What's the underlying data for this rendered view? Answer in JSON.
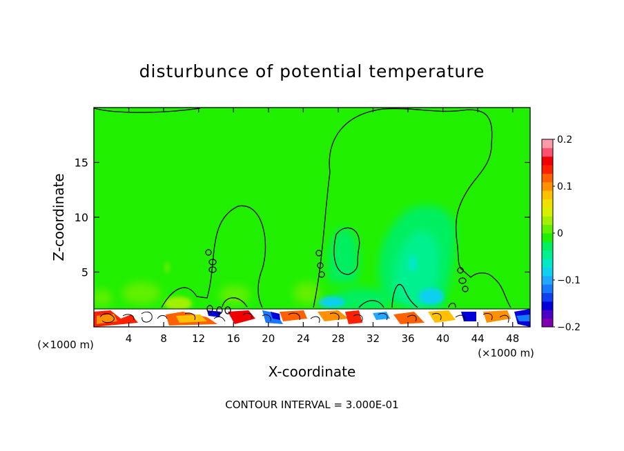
{
  "chart_data": {
    "type": "heatmap",
    "title": "disturbunce of potential temperature",
    "xlabel": "X-coordinate",
    "ylabel": "Z-coordinate",
    "x_unit_left": "(×1000 m)",
    "x_unit_right": "(×1000 m)",
    "xlim": [
      0,
      50
    ],
    "ylim": [
      0,
      20
    ],
    "x_ticks": [
      4,
      8,
      12,
      16,
      20,
      24,
      28,
      32,
      36,
      40,
      44,
      48
    ],
    "y_ticks": [
      5,
      10,
      15
    ],
    "footer": "CONTOUR INTERVAL = 3.000E-01",
    "colorbar": {
      "range": [
        -0.2,
        0.2
      ],
      "tick_values": [
        0.2,
        0.1,
        0,
        -0.1,
        -0.2
      ],
      "tick_labels": [
        "0.2",
        "0.1",
        "0",
        "−0.1",
        "−0.2"
      ],
      "colors": [
        "#8000b0",
        "#4b00c8",
        "#0000d8",
        "#1040f0",
        "#1878ff",
        "#20a8ff",
        "#10d0f0",
        "#00e8c8",
        "#00f090",
        "#00ef60",
        "#20f000",
        "#60f000",
        "#a0f000",
        "#d8f000",
        "#f0e000",
        "#ffc000",
        "#ff9000",
        "#ff6000",
        "#ff2000",
        "#f00000",
        "#ff5070",
        "#ff9aa8"
      ]
    },
    "background_value": 0.0,
    "regions": [
      {
        "feature": "weak negative plume",
        "x_center": 36,
        "z_center": 6.5,
        "value": -0.04
      },
      {
        "feature": "weak negative plume",
        "x_center": 29,
        "z_center": 5,
        "value": -0.03
      },
      {
        "feature": "surface turbulent layer",
        "x_range": [
          0,
          50
        ],
        "z_range": [
          0,
          1.8
        ],
        "value_range": [
          -0.2,
          0.2
        ]
      }
    ]
  }
}
